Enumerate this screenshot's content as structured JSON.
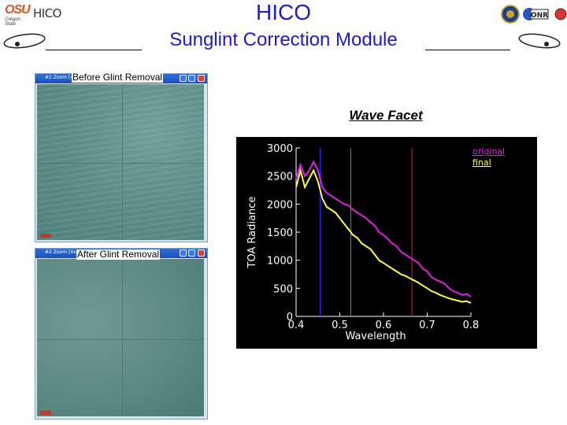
{
  "header": {
    "title": "HICO",
    "subtitle": "Sunglint Correction Module",
    "logo_left_text": "OSU",
    "logo_left_sub": "Oregon State",
    "logo_hico_text": "HICO",
    "logo_right_text": "ONR"
  },
  "windows": [
    {
      "titlebar_text": "#1 Zoom [4x]",
      "label": "Before Glint Removal"
    },
    {
      "titlebar_text": "#2 Zoom [4x]",
      "label": "After Glint Removal"
    }
  ],
  "chart_heading": "Wave Facet",
  "colors": {
    "title_blue": "#1a1ad8",
    "original_series": "#e020e0",
    "final_series": "#ffff40",
    "line_blue": "#3030ff",
    "line_green": "#20c020",
    "line_red": "#e02020"
  },
  "chart_data": {
    "type": "line",
    "xlabel": "Wavelength",
    "ylabel": "TOA Radiance",
    "xlim": [
      0.4,
      0.8
    ],
    "ylim": [
      0,
      3000
    ],
    "xticks": [
      "0.4",
      "0.5",
      "0.6",
      "0.7",
      "0.8"
    ],
    "yticks": [
      "0",
      "500",
      "1000",
      "1500",
      "2000",
      "2500",
      "3000"
    ],
    "legend_position": "top-right",
    "vertical_lines": [
      {
        "x": 0.455,
        "color": "#3030ff"
      },
      {
        "x": 0.525,
        "color": "#20c020"
      },
      {
        "x": 0.665,
        "color": "#e02020"
      }
    ],
    "series": [
      {
        "name": "original",
        "color": "#e020e0",
        "x": [
          0.4,
          0.41,
          0.42,
          0.43,
          0.44,
          0.45,
          0.46,
          0.47,
          0.48,
          0.49,
          0.5,
          0.51,
          0.52,
          0.53,
          0.54,
          0.55,
          0.56,
          0.57,
          0.58,
          0.59,
          0.6,
          0.61,
          0.62,
          0.63,
          0.64,
          0.65,
          0.66,
          0.67,
          0.68,
          0.69,
          0.7,
          0.71,
          0.72,
          0.73,
          0.74,
          0.75,
          0.76,
          0.77,
          0.78,
          0.79,
          0.8
        ],
        "y": [
          2450,
          2700,
          2500,
          2600,
          2750,
          2600,
          2300,
          2200,
          2150,
          2100,
          2050,
          2000,
          1980,
          1900,
          1850,
          1800,
          1750,
          1680,
          1620,
          1500,
          1450,
          1380,
          1300,
          1250,
          1150,
          1100,
          1050,
          1000,
          950,
          850,
          800,
          700,
          650,
          620,
          580,
          500,
          450,
          420,
          380,
          400,
          350
        ]
      },
      {
        "name": "final",
        "color": "#ffff40",
        "x": [
          0.4,
          0.41,
          0.42,
          0.43,
          0.44,
          0.45,
          0.46,
          0.47,
          0.48,
          0.49,
          0.5,
          0.51,
          0.52,
          0.53,
          0.54,
          0.55,
          0.56,
          0.57,
          0.58,
          0.59,
          0.6,
          0.61,
          0.62,
          0.63,
          0.64,
          0.65,
          0.66,
          0.67,
          0.68,
          0.69,
          0.7,
          0.71,
          0.72,
          0.73,
          0.74,
          0.75,
          0.76,
          0.77,
          0.78,
          0.79,
          0.8
        ],
        "y": [
          2300,
          2600,
          2300,
          2450,
          2600,
          2400,
          2100,
          1950,
          1900,
          1850,
          1750,
          1650,
          1550,
          1450,
          1400,
          1300,
          1250,
          1200,
          1100,
          1000,
          950,
          900,
          850,
          800,
          750,
          720,
          680,
          640,
          600,
          550,
          500,
          450,
          420,
          380,
          350,
          320,
          300,
          280,
          260,
          270,
          240
        ]
      }
    ]
  }
}
